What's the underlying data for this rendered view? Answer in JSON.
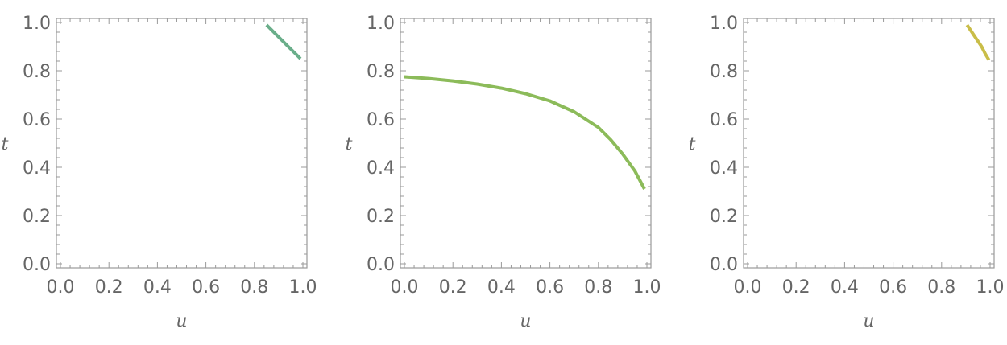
{
  "chart_data": [
    {
      "type": "line",
      "xlabel": "u",
      "ylabel": "t",
      "xlim": [
        0,
        1
      ],
      "ylim": [
        0,
        1
      ],
      "xticks": [
        "0.0",
        "0.2",
        "0.4",
        "0.6",
        "0.8",
        "1.0"
      ],
      "yticks": [
        "0.0",
        "0.2",
        "0.4",
        "0.6",
        "0.8",
        "1.0"
      ],
      "series": [
        {
          "color": "#6aae8a",
          "x": [
            0.85,
            0.88,
            0.91,
            0.94,
            0.97,
            0.99
          ],
          "y": [
            0.99,
            0.96,
            0.93,
            0.9,
            0.87,
            0.85
          ]
        }
      ]
    },
    {
      "type": "line",
      "xlabel": "u",
      "ylabel": "t",
      "xlim": [
        0,
        1
      ],
      "ylim": [
        0,
        1
      ],
      "xticks": [
        "0.0",
        "0.2",
        "0.4",
        "0.6",
        "0.8",
        "1.0"
      ],
      "yticks": [
        "0.0",
        "0.2",
        "0.4",
        "0.6",
        "0.8",
        "1.0"
      ],
      "series": [
        {
          "color": "#8cbb5a",
          "x": [
            0.0,
            0.1,
            0.2,
            0.3,
            0.4,
            0.5,
            0.6,
            0.7,
            0.8,
            0.85,
            0.9,
            0.95,
            0.99
          ],
          "y": [
            0.775,
            0.768,
            0.758,
            0.745,
            0.728,
            0.705,
            0.675,
            0.63,
            0.565,
            0.515,
            0.455,
            0.385,
            0.31
          ]
        }
      ]
    },
    {
      "type": "line",
      "xlabel": "u",
      "ylabel": "t",
      "xlim": [
        0,
        1
      ],
      "ylim": [
        0,
        1
      ],
      "xticks": [
        "0.0",
        "0.2",
        "0.4",
        "0.6",
        "0.8",
        "1.0"
      ],
      "yticks": [
        "0.0",
        "0.2",
        "0.4",
        "0.6",
        "0.8",
        "1.0"
      ],
      "series": [
        {
          "color": "#c9bd48",
          "x": [
            0.905,
            0.925,
            0.945,
            0.965,
            0.98,
            0.995
          ],
          "y": [
            0.99,
            0.96,
            0.93,
            0.9,
            0.87,
            0.845
          ]
        }
      ]
    }
  ]
}
